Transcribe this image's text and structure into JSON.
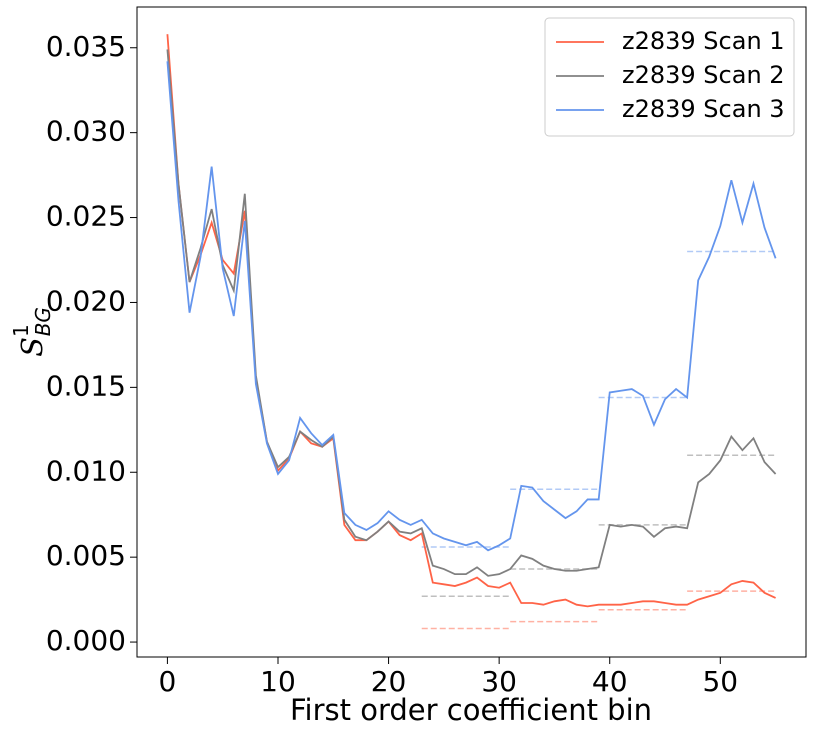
{
  "chart_data": {
    "type": "line",
    "xlabel": "First order coefficient bin",
    "ylabel": {
      "text": "S",
      "superscript": "1",
      "subscript": "BG"
    },
    "xlim": [
      -2.75,
      57.75
    ],
    "ylim": [
      -0.00088,
      0.0374
    ],
    "xticks": [
      0,
      10,
      20,
      30,
      40,
      50
    ],
    "yticks": [
      {
        "value": 0,
        "label": "0.000"
      },
      {
        "value": 0.005,
        "label": "0.005"
      },
      {
        "value": 0.01,
        "label": "0.010"
      },
      {
        "value": 0.015,
        "label": "0.015"
      },
      {
        "value": 0.02,
        "label": "0.020"
      },
      {
        "value": 0.025,
        "label": "0.025"
      },
      {
        "value": 0.03,
        "label": "0.030"
      },
      {
        "value": 0.035,
        "label": "0.035"
      }
    ],
    "grid": false,
    "legend": "upper right",
    "x": [
      0,
      1,
      2,
      3,
      4,
      5,
      6,
      7,
      8,
      9,
      10,
      11,
      12,
      13,
      14,
      15,
      16,
      17,
      18,
      19,
      20,
      21,
      22,
      23,
      24,
      25,
      26,
      27,
      28,
      29,
      30,
      31,
      32,
      33,
      34,
      35,
      36,
      37,
      38,
      39,
      40,
      41,
      42,
      43,
      44,
      45,
      46,
      47,
      48,
      49,
      50,
      51,
      52,
      53,
      54,
      55
    ],
    "series": [
      {
        "name": "z2839 Scan 1",
        "color": "tomato",
        "values": [
          0.0358,
          0.027,
          0.0212,
          0.0228,
          0.0247,
          0.0225,
          0.0217,
          0.0254,
          0.0155,
          0.0118,
          0.0101,
          0.0108,
          0.0124,
          0.0117,
          0.0115,
          0.012,
          0.0069,
          0.006,
          0.006,
          0.0065,
          0.0071,
          0.0063,
          0.006,
          0.0064,
          0.0035,
          0.0034,
          0.0033,
          0.0035,
          0.0038,
          0.0033,
          0.0032,
          0.0035,
          0.0023,
          0.0023,
          0.0022,
          0.0024,
          0.0025,
          0.0022,
          0.0021,
          0.0022,
          0.0022,
          0.0022,
          0.0023,
          0.0024,
          0.0024,
          0.0023,
          0.0022,
          0.0022,
          0.0025,
          0.0027,
          0.0029,
          0.0034,
          0.0036,
          0.0035,
          0.0029,
          0.0026
        ],
        "dashed": [
          {
            "x": [
              23,
              31
            ],
            "value": 0.0008
          },
          {
            "x": [
              31,
              39
            ],
            "value": 0.0012
          },
          {
            "x": [
              39,
              47
            ],
            "value": 0.0019
          },
          {
            "x": [
              47,
              55
            ],
            "value": 0.003
          }
        ]
      },
      {
        "name": "z2839 Scan 2",
        "color": "grey",
        "values": [
          0.0349,
          0.027,
          0.0212,
          0.0232,
          0.0255,
          0.0222,
          0.0207,
          0.0264,
          0.0157,
          0.0118,
          0.0103,
          0.0109,
          0.0124,
          0.0119,
          0.0115,
          0.0121,
          0.0072,
          0.0062,
          0.006,
          0.0065,
          0.0071,
          0.0065,
          0.0064,
          0.0067,
          0.0045,
          0.0043,
          0.004,
          0.004,
          0.0044,
          0.0039,
          0.004,
          0.0043,
          0.0051,
          0.0049,
          0.0045,
          0.0043,
          0.0042,
          0.0042,
          0.0043,
          0.0044,
          0.0069,
          0.0068,
          0.0069,
          0.0068,
          0.0062,
          0.0067,
          0.0068,
          0.0067,
          0.0094,
          0.0099,
          0.0107,
          0.0121,
          0.0113,
          0.012,
          0.0106,
          0.0099
        ],
        "dashed": [
          {
            "x": [
              23,
              31
            ],
            "value": 0.0027
          },
          {
            "x": [
              31,
              39
            ],
            "value": 0.0043
          },
          {
            "x": [
              39,
              47
            ],
            "value": 0.0069
          },
          {
            "x": [
              47,
              55
            ],
            "value": 0.011
          }
        ]
      },
      {
        "name": "z2839 Scan 3",
        "color": "cornflowerblue",
        "values": [
          0.0342,
          0.026,
          0.0194,
          0.0227,
          0.028,
          0.022,
          0.0192,
          0.0248,
          0.0152,
          0.0117,
          0.0099,
          0.0107,
          0.0132,
          0.0123,
          0.0116,
          0.0122,
          0.0076,
          0.0069,
          0.0066,
          0.007,
          0.0077,
          0.0072,
          0.0069,
          0.0072,
          0.0064,
          0.0061,
          0.0059,
          0.0057,
          0.0059,
          0.0054,
          0.0057,
          0.0061,
          0.0092,
          0.0091,
          0.0083,
          0.0078,
          0.0073,
          0.0077,
          0.0084,
          0.0084,
          0.0147,
          0.0148,
          0.0149,
          0.0145,
          0.0128,
          0.0143,
          0.0149,
          0.0144,
          0.0213,
          0.0227,
          0.0245,
          0.0272,
          0.0247,
          0.027,
          0.0244,
          0.0226
        ],
        "dashed": [
          {
            "x": [
              23,
              31
            ],
            "value": 0.0056
          },
          {
            "x": [
              31,
              39
            ],
            "value": 0.009
          },
          {
            "x": [
              39,
              47
            ],
            "value": 0.0144
          },
          {
            "x": [
              47,
              55
            ],
            "value": 0.023
          }
        ]
      }
    ]
  }
}
